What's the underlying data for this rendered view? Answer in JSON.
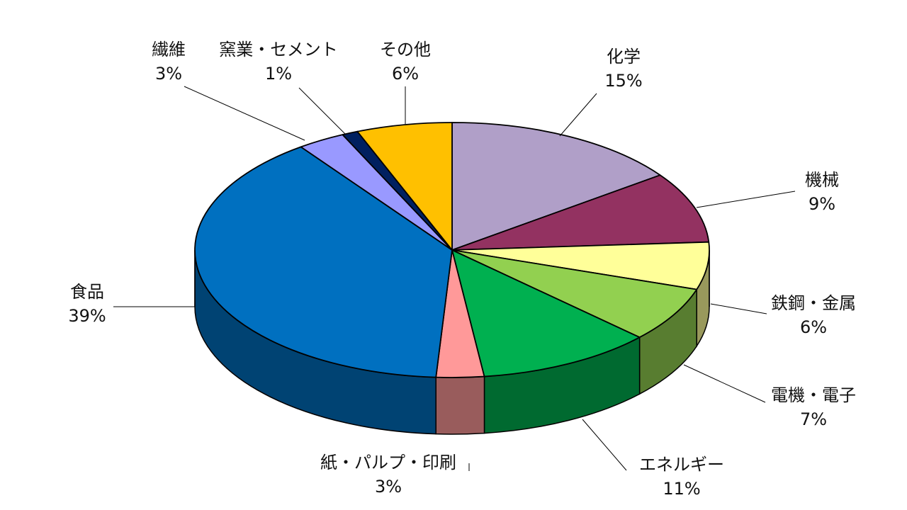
{
  "chart_data": {
    "type": "pie",
    "style": "3d-tilted",
    "start": "12 o'clock",
    "direction": "clockwise",
    "labels": [
      "化学",
      "機械",
      "鉄鋼・金属",
      "電機・電子",
      "エネルギー",
      "紙・パルプ・印刷",
      "食品",
      "繊維",
      "窯業・セメント",
      "その他"
    ],
    "values": [
      15,
      9,
      6,
      7,
      11,
      3,
      39,
      3,
      1,
      6
    ],
    "value_labels": [
      "15%",
      "9%",
      "6%",
      "7%",
      "11%",
      "3%",
      "39%",
      "3%",
      "1%",
      "6%"
    ],
    "colors": [
      "#B09FC8",
      "#933261",
      "#FFFF99",
      "#92D050",
      "#00B050",
      "#FF9999",
      "#0070C0",
      "#9999FF",
      "#002060",
      "#FFC000"
    ],
    "legend": "none"
  }
}
